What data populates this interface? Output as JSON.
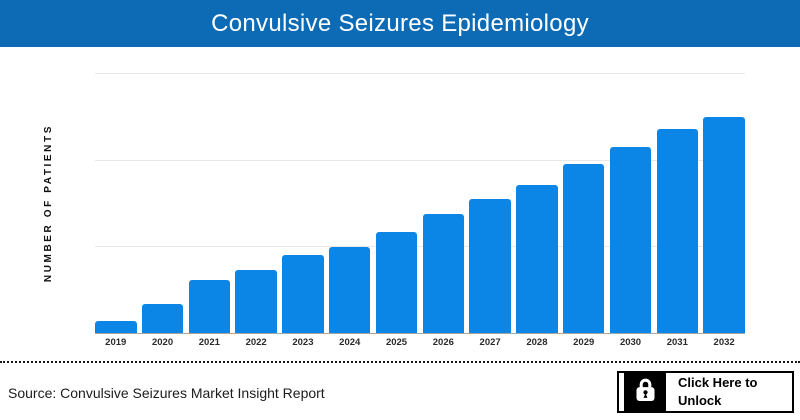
{
  "header": {
    "title": "Convulsive Seizures Epidemiology"
  },
  "chart_data": {
    "type": "bar",
    "title": "Convulsive Seizures Epidemiology",
    "ylabel": "NUMBER OF PATIENTS",
    "xlabel": "",
    "categories": [
      "2019",
      "2020",
      "2021",
      "2022",
      "2023",
      "2024",
      "2025",
      "2026",
      "2027",
      "2028",
      "2029",
      "2030",
      "2031",
      "2032"
    ],
    "values": [
      4.6,
      11.2,
      20.4,
      24.2,
      30.0,
      33.1,
      38.8,
      45.8,
      51.5,
      56.9,
      65.0,
      71.5,
      78.5,
      83.1
    ],
    "value_scale": "relative units (percent of plot height); y-axis has no numeric tick labels",
    "ylim": [
      0,
      100
    ],
    "grid": true,
    "gridlines_pct_from_bottom": [
      0,
      33.3,
      66.7,
      100
    ],
    "legend": false,
    "bar_color": "#0b86e7"
  },
  "footer": {
    "source_text": "Source: Convulsive Seizures Market Insight Report",
    "unlock_button": {
      "line1": "Click Here to",
      "line2": "Unlock",
      "icon": "lock-icon"
    }
  },
  "colors": {
    "header_bg": "#0d6bb5",
    "bar_blue": "#0b86e7",
    "gridline": "#e8e8e8",
    "axis_line": "#a6a6a6",
    "separator": "#1a1a1a",
    "tick_label": "#2b2b2b",
    "title_text": "#ffffff",
    "source_text": "#1c1c1c",
    "button_bg": "#ffffff",
    "button_border": "#000000",
    "lock_bg": "#000000"
  }
}
